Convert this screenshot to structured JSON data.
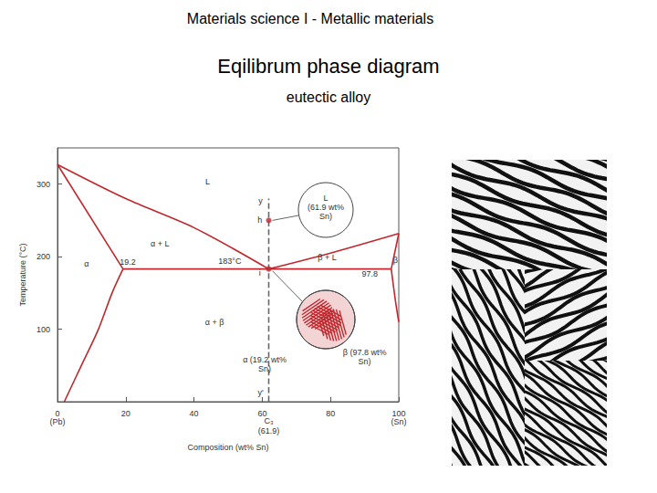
{
  "header": {
    "title": "Materials science I - Metallic materials",
    "heading": "Eqilibrum phase diagram",
    "subheading": "eutectic alloy"
  },
  "chart_data": {
    "type": "line",
    "xlabel": "Composition (wt% Sn)",
    "ylabel": "Temperature (°C)",
    "xlim": [
      0,
      100
    ],
    "xticks": [
      0,
      20,
      40,
      60,
      80,
      100
    ],
    "ylim": [
      0,
      350
    ],
    "yticks": [
      100,
      200,
      300
    ],
    "grid": false,
    "series": [
      {
        "type": "line",
        "color": "#c0282d",
        "x": [
          0,
          20,
          40,
          61.9
        ],
        "values": [
          327,
          280,
          240,
          183
        ]
      },
      {
        "type": "line",
        "color": "#c0282d",
        "x": [
          61.9,
          80,
          100
        ],
        "values": [
          183,
          205,
          232
        ]
      },
      {
        "type": "line",
        "color": "#c0282d",
        "x": [
          0,
          19.2
        ],
        "values": [
          327,
          183
        ]
      },
      {
        "type": "line",
        "color": "#c0282d",
        "x": [
          19.2,
          16,
          12,
          7,
          2
        ],
        "values": [
          183,
          150,
          100,
          50,
          0
        ]
      },
      {
        "type": "line",
        "color": "#c0282d",
        "x": [
          19.2,
          97.8
        ],
        "values": [
          183,
          183
        ]
      },
      {
        "type": "line",
        "color": "#c0282d",
        "x": [
          97.8,
          100
        ],
        "values": [
          183,
          232
        ]
      },
      {
        "type": "line",
        "color": "#c0282d",
        "x": [
          97.8,
          99,
          100
        ],
        "values": [
          183,
          140,
          110
        ]
      },
      {
        "type": "line",
        "color": "#666666",
        "line_style": "dashed",
        "x": [
          61.9,
          61.9
        ],
        "values": [
          0,
          280
        ]
      },
      {
        "type": "scatter",
        "color": "#c0282d",
        "marker": "circle",
        "x": [
          61.9,
          61.9
        ],
        "values": [
          250,
          183
        ]
      }
    ],
    "annotations": [
      {
        "text": "L",
        "x": 44,
        "y": 304
      },
      {
        "text": "α + L",
        "x": 30,
        "y": 218
      },
      {
        "text": "β + L",
        "x": 79,
        "y": 199
      },
      {
        "text": "α",
        "x": 8.5,
        "y": 190
      },
      {
        "text": "β",
        "x": 99,
        "y": 195
      },
      {
        "text": "α + β",
        "x": 46,
        "y": 109
      },
      {
        "text": "183°C",
        "x": 50.5,
        "y": 194
      },
      {
        "text": "19.2",
        "x": 20.6,
        "y": 192
      },
      {
        "text": "97.8",
        "x": 91.5,
        "y": 176
      },
      {
        "text": "y",
        "x": 59.5,
        "y": 277
      },
      {
        "text": "h",
        "x": 59.3,
        "y": 250
      },
      {
        "text": "i",
        "x": 59.3,
        "y": 178
      },
      {
        "text": "y'",
        "x": 59.5,
        "y": 12
      },
      {
        "text": "(Pb)",
        "x": 0,
        "y": -28
      },
      {
        "text": "(Sn)",
        "x": 100,
        "y": -28
      },
      {
        "text": "C₃",
        "x": 61.9,
        "y": -27
      },
      {
        "text": "(61.9)",
        "x": 61.9,
        "y": -40
      },
      {
        "text": "L\n(61.9 wt%\nSn)",
        "x": 78.6,
        "y": 268
      },
      {
        "text": "α (19.2 wt%\nSn)",
        "x": 60.7,
        "y": 51
      },
      {
        "text": "β (97.8 wt%\nSn)",
        "x": 90,
        "y": 62
      }
    ]
  }
}
